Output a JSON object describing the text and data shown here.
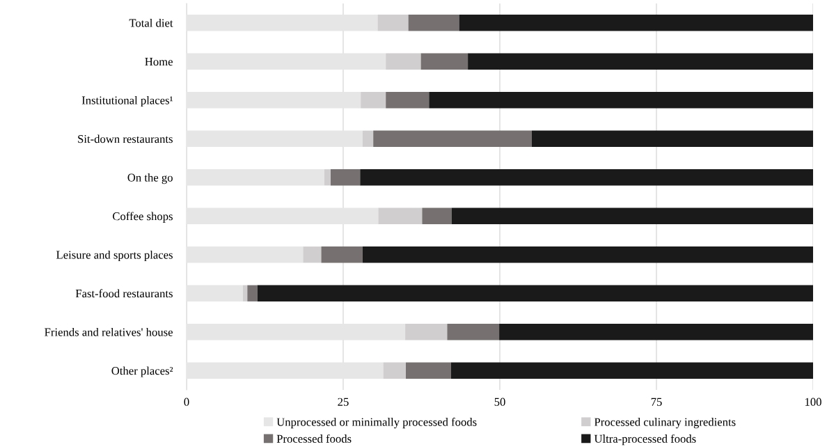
{
  "chart_data": {
    "type": "bar",
    "orientation": "horizontal",
    "stacked": true,
    "categories": [
      "Total diet",
      "Home",
      "Institutional places¹",
      "Sit-down restaurants",
      "On the go",
      "Coffee shops",
      "Leisure and sports places",
      "Fast-food restaurants",
      "Friends and relatives' house",
      "Other places²"
    ],
    "series": [
      {
        "name": "Unprocessed or minimally processed foods",
        "color": "#e6e6e6",
        "values": [
          30.5,
          31.8,
          27.8,
          28.1,
          22.0,
          30.6,
          18.6,
          9.0,
          34.9,
          31.4
        ]
      },
      {
        "name": "Processed culinary ingredients",
        "color": "#d0cecf",
        "values": [
          4.9,
          5.6,
          4.0,
          1.7,
          1.0,
          7.0,
          2.9,
          0.7,
          6.7,
          3.6
        ]
      },
      {
        "name": "Processed foods",
        "color": "#767170",
        "values": [
          8.1,
          7.5,
          6.9,
          25.3,
          4.7,
          4.7,
          6.6,
          1.6,
          8.3,
          7.2
        ]
      },
      {
        "name": "Ultra-processed foods",
        "color": "#1a1a1a",
        "values": [
          56.5,
          55.1,
          61.3,
          44.9,
          72.3,
          57.7,
          71.9,
          88.7,
          50.1,
          57.8
        ]
      }
    ],
    "xlim": [
      0,
      100
    ],
    "xticks": [
      0,
      25,
      50,
      75,
      100
    ],
    "grid": "x",
    "legend": "bottom"
  }
}
